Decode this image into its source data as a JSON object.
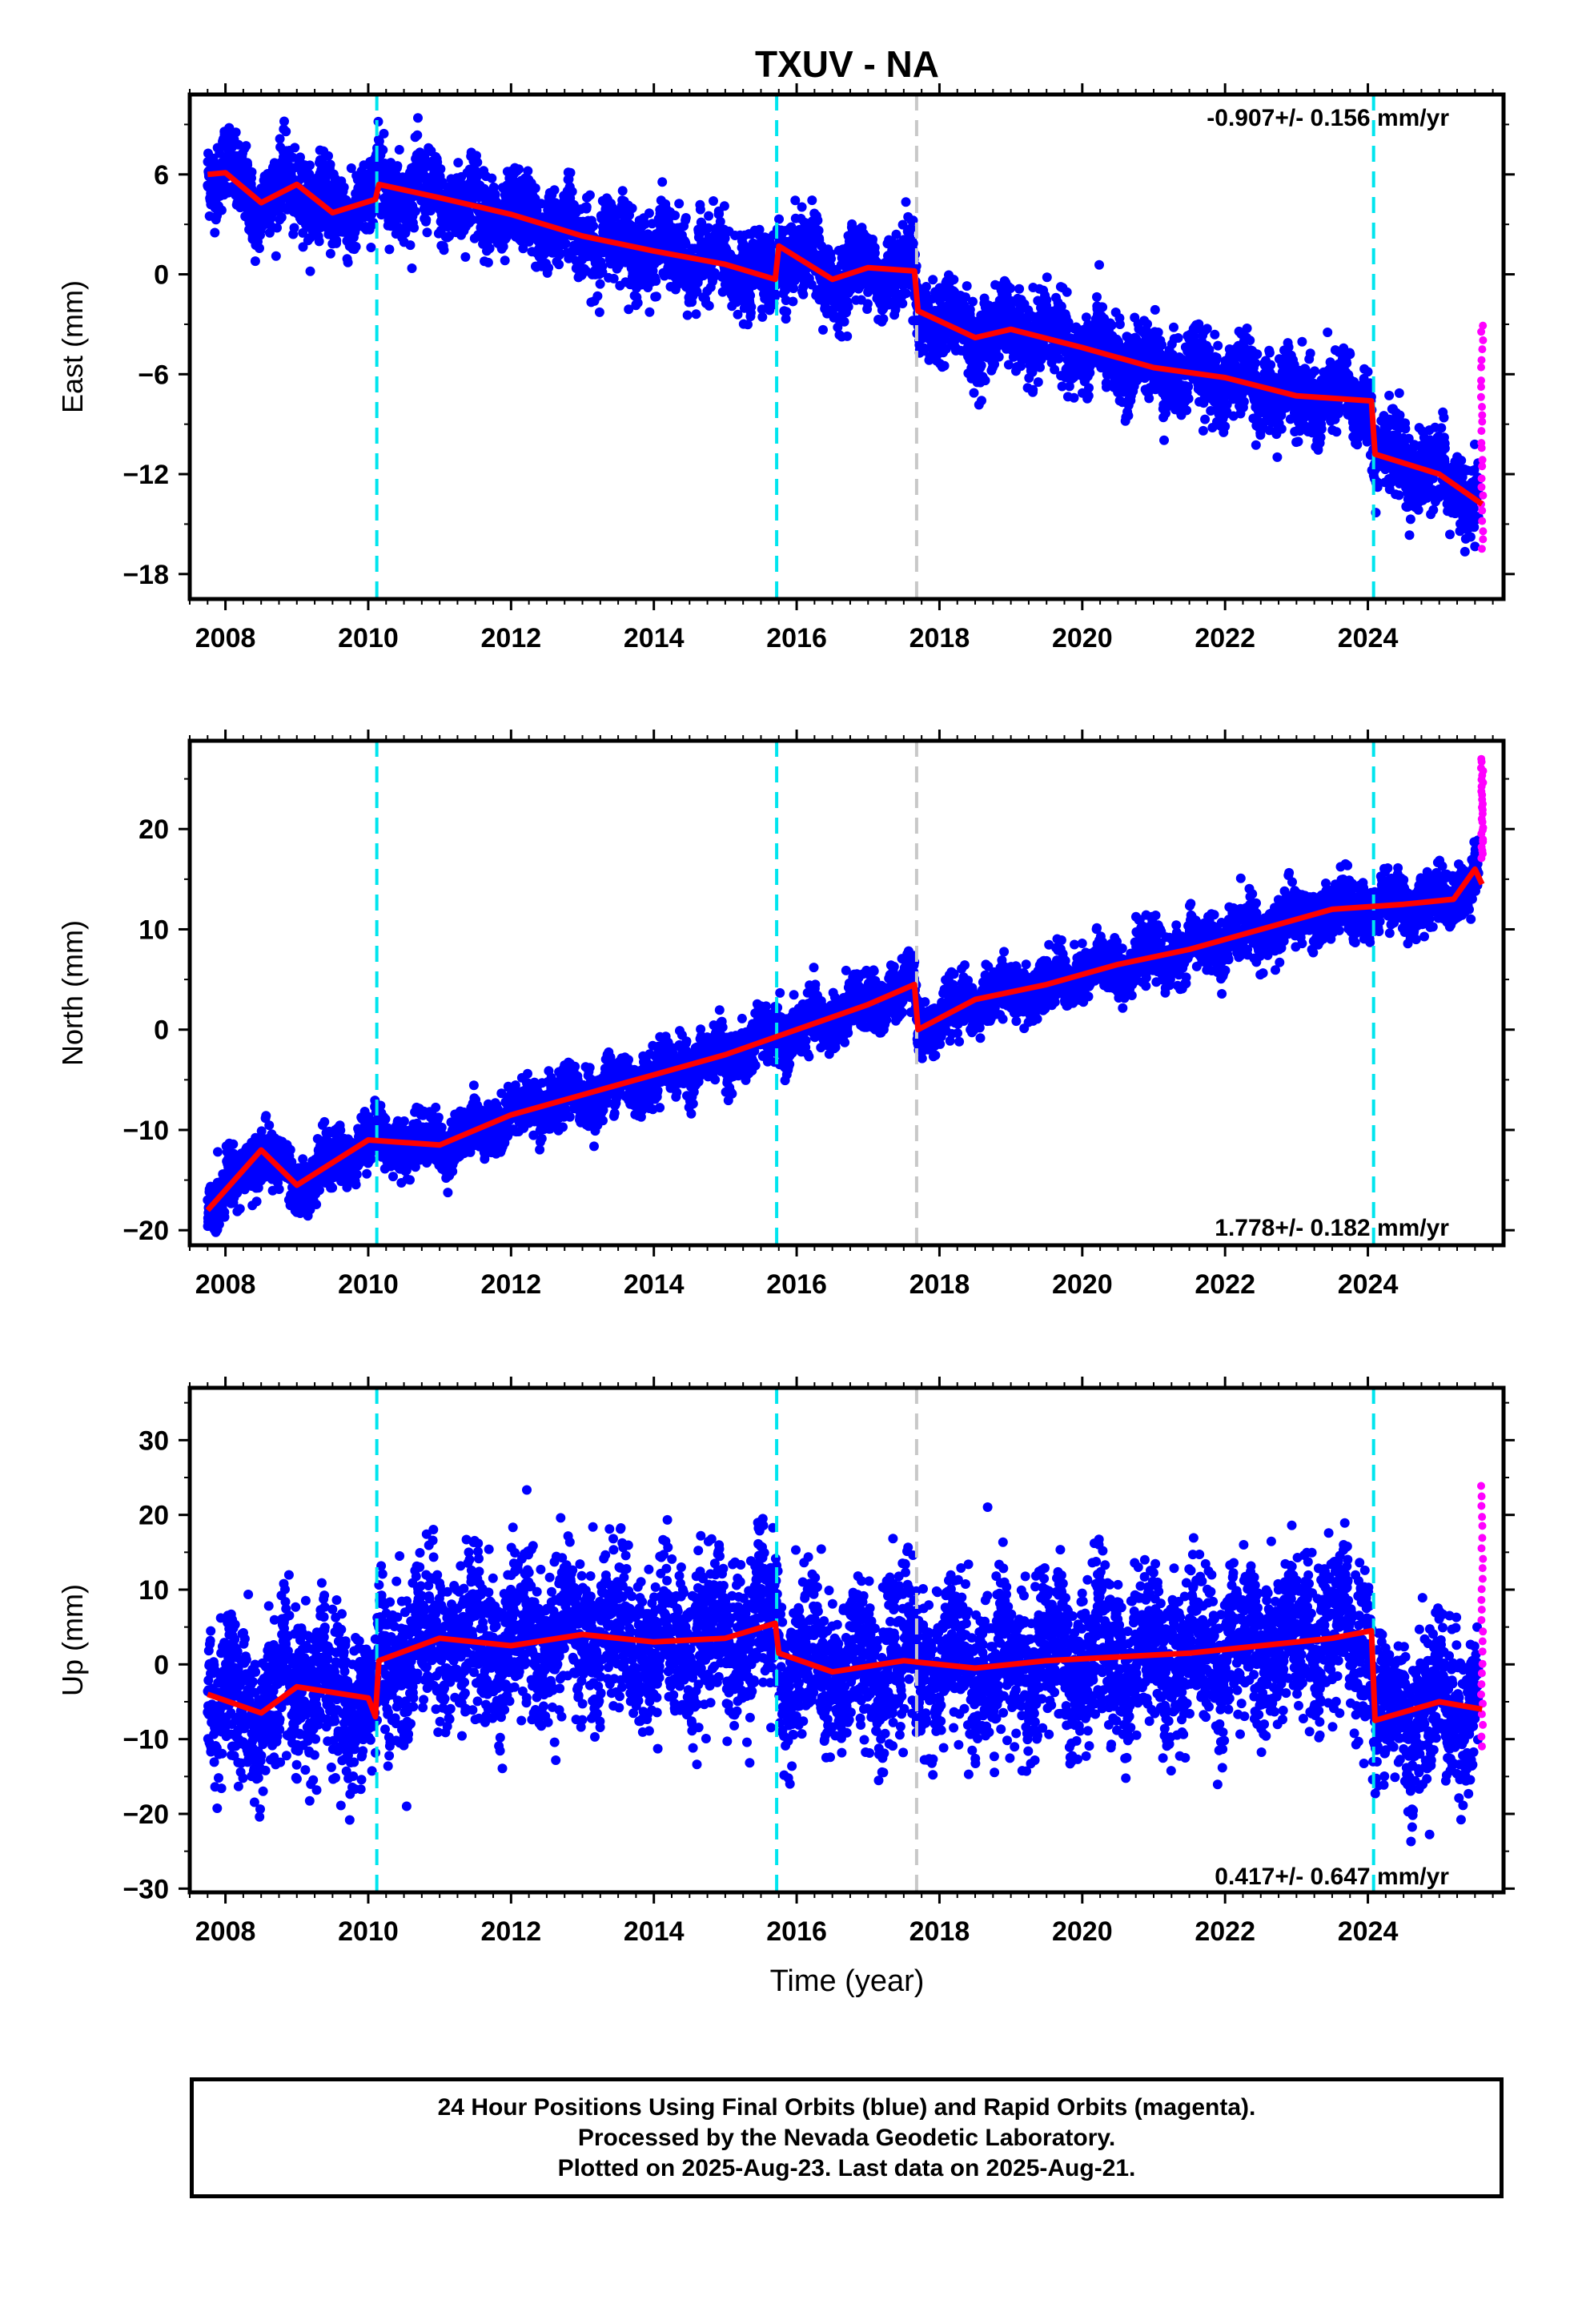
{
  "title": "TXUV - NA",
  "xlabel": "Time (year)",
  "caption": {
    "line1": "24 Hour Positions Using Final Orbits (blue) and Rapid Orbits (magenta).",
    "line2": "Processed by the Nevada Geodetic Laboratory.",
    "line3": "Plotted on 2025-Aug-23. Last data on 2025-Aug-21."
  },
  "colors": {
    "final_orbits": "#0000ff",
    "rapid_orbits": "#ff00ff",
    "model": "#ff0000",
    "equipment_change": "#00e5ee",
    "other_event": "#c8c8c8"
  },
  "chart_data": [
    {
      "type": "scatter",
      "component": "East",
      "ylabel": "East (mm)",
      "xlim": [
        2007.5,
        2025.9
      ],
      "ylim": [
        -19.5,
        10.8
      ],
      "xticks": [
        2008,
        2010,
        2012,
        2014,
        2016,
        2018,
        2020,
        2022,
        2024
      ],
      "yticks": [
        -18,
        -12,
        -6,
        0,
        6
      ],
      "ytick_labels": [
        "−18",
        "−12",
        "−6",
        "0",
        "6"
      ],
      "grid": false,
      "rate_label": "-0.907+/- 0.156 mm/yr",
      "rate_position": "top-right",
      "trend": {
        "rate": -0.907,
        "intercept_2007_75": 6.2,
        "annual_amp": 1.0,
        "semiannual_amp": 0.4
      },
      "offsets": [
        {
          "year": 2010.12,
          "mm": -0.9
        },
        {
          "year": 2015.72,
          "mm": 2.0
        },
        {
          "year": 2017.68,
          "mm": 0
        },
        {
          "year": 2024.08,
          "mm": -2.6
        }
      ],
      "model_line": {
        "x": [
          2007.75,
          2008.0,
          2008.5,
          2009.0,
          2009.5,
          2010.1,
          2010.15,
          2011.0,
          2012.0,
          2013.0,
          2014.0,
          2015.0,
          2015.7,
          2015.75,
          2016.5,
          2017.0,
          2017.65,
          2017.7,
          2018.5,
          2019.0,
          2020.0,
          2021.0,
          2022.0,
          2023.0,
          2024.05,
          2024.1,
          2025.0,
          2025.6
        ],
        "y": [
          6.0,
          6.1,
          4.3,
          5.4,
          3.7,
          4.5,
          5.4,
          4.6,
          3.6,
          2.3,
          1.4,
          0.6,
          -0.3,
          1.7,
          -0.3,
          0.4,
          0.2,
          -2.2,
          -3.8,
          -3.3,
          -4.4,
          -5.6,
          -6.2,
          -7.3,
          -7.6,
          -10.8,
          -12.0,
          -13.8
        ]
      },
      "rapid": {
        "x": 2025.6,
        "y_min": -16.5,
        "y_max": -3.0
      },
      "scatter_sigma": 1.3
    },
    {
      "type": "scatter",
      "component": "North",
      "ylabel": "North (mm)",
      "xlim": [
        2007.5,
        2025.9
      ],
      "ylim": [
        -21.5,
        28.8
      ],
      "xticks": [
        2008,
        2010,
        2012,
        2014,
        2016,
        2018,
        2020,
        2022,
        2024
      ],
      "yticks": [
        -20,
        -10,
        0,
        10,
        20
      ],
      "ytick_labels": [
        "−20",
        "−10",
        "0",
        "10",
        "20"
      ],
      "grid": false,
      "rate_label": "1.778+/- 0.182 mm/yr",
      "rate_position": "bottom-right",
      "trend": {
        "rate": 1.778,
        "intercept_2007_75": -16.8,
        "annual_amp": 1.8,
        "semiannual_amp": 0.5
      },
      "offsets": [
        {
          "year": 2010.12,
          "mm": 0
        },
        {
          "year": 2015.72,
          "mm": 0
        },
        {
          "year": 2017.68,
          "mm": -3.5
        },
        {
          "year": 2024.08,
          "mm": 0
        }
      ],
      "model_line": {
        "x": [
          2007.75,
          2008.5,
          2009.0,
          2010.0,
          2011.0,
          2012.0,
          2013.0,
          2014.0,
          2015.0,
          2016.0,
          2017.0,
          2017.65,
          2017.7,
          2018.5,
          2019.5,
          2020.5,
          2021.5,
          2022.5,
          2023.5,
          2024.5,
          2025.2,
          2025.5,
          2025.6
        ],
        "y": [
          -18.0,
          -12.0,
          -15.5,
          -11.0,
          -11.5,
          -8.5,
          -6.5,
          -4.5,
          -2.5,
          0.0,
          2.5,
          4.5,
          0.0,
          3.0,
          4.5,
          6.5,
          8.0,
          10.0,
          12.0,
          12.5,
          13.0,
          16.0,
          14.5
        ]
      },
      "rapid": {
        "x": 2025.6,
        "y_min": 17.0,
        "y_max": 27.0
      },
      "scatter_sigma": 1.5
    },
    {
      "type": "scatter",
      "component": "Up",
      "ylabel": "Up (mm)",
      "xlim": [
        2007.5,
        2025.9
      ],
      "ylim": [
        -30.5,
        37.0
      ],
      "xticks": [
        2008,
        2010,
        2012,
        2014,
        2016,
        2018,
        2020,
        2022,
        2024
      ],
      "yticks": [
        -30,
        -20,
        -10,
        0,
        10,
        20,
        30
      ],
      "ytick_labels": [
        "−30",
        "−20",
        "−10",
        "0",
        "10",
        "20",
        "30"
      ],
      "grid": false,
      "rate_label": "0.417+/- 0.647 mm/yr",
      "rate_position": "bottom-right",
      "trend": {
        "rate": 0.417,
        "intercept_2007_75": -6.0,
        "annual_amp": 2.2,
        "semiannual_amp": 0.6
      },
      "offsets": [
        {
          "year": 2010.12,
          "mm": 7.5
        },
        {
          "year": 2015.72,
          "mm": -4.5
        },
        {
          "year": 2017.68,
          "mm": 0
        },
        {
          "year": 2024.08,
          "mm": -11.5
        }
      ],
      "model_line": {
        "x": [
          2007.75,
          2008.5,
          2009.0,
          2010.0,
          2010.1,
          2010.15,
          2011.0,
          2012.0,
          2013.0,
          2014.0,
          2015.0,
          2015.7,
          2015.75,
          2016.5,
          2017.5,
          2018.5,
          2019.5,
          2020.5,
          2021.5,
          2022.5,
          2023.5,
          2024.05,
          2024.1,
          2025.0,
          2025.6
        ],
        "y": [
          -4.0,
          -6.5,
          -3.0,
          -4.5,
          -7.0,
          0.5,
          3.5,
          2.5,
          4.0,
          3.0,
          3.5,
          5.5,
          1.5,
          -1.0,
          0.5,
          -0.5,
          0.5,
          1.0,
          1.5,
          2.5,
          3.5,
          4.5,
          -7.5,
          -5.0,
          -6.0
        ]
      },
      "rapid": {
        "x": 2025.6,
        "y_min": -11.0,
        "y_max": 24.0
      },
      "scatter_sigma": 5.0
    }
  ],
  "event_lines": [
    {
      "year": 2010.12,
      "kind": "equipment_change"
    },
    {
      "year": 2015.72,
      "kind": "equipment_change"
    },
    {
      "year": 2017.68,
      "kind": "other_event"
    },
    {
      "year": 2024.08,
      "kind": "equipment_change"
    }
  ]
}
